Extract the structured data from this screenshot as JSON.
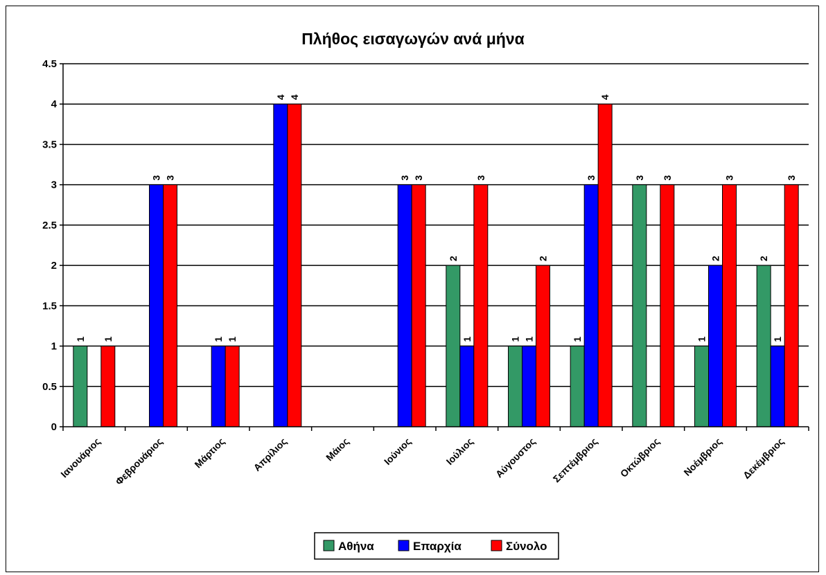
{
  "chart_data": {
    "type": "bar",
    "title": "Πλήθος εισαγωγών ανά μήνα",
    "xlabel": "",
    "ylabel": "",
    "ylim": [
      0,
      4.5
    ],
    "ytick_step": 0.5,
    "grid": true,
    "legend_position": "bottom",
    "categories": [
      "Ιανουάριος",
      "Φεβρουάριος",
      "Μάρτιος",
      "Απρίλιος",
      "Μάιος",
      "Ιούνιος",
      "Ιούλιος",
      "Αύγουστος",
      "Σεπτέμβριος",
      "Οκτώβριος",
      "Νοέμβριος",
      "Δεκέμβριος"
    ],
    "series": [
      {
        "name": "Αθήνα",
        "color": "#339966",
        "values": [
          1,
          0,
          0,
          0,
          0,
          0,
          2,
          1,
          1,
          3,
          1,
          2
        ]
      },
      {
        "name": "Επαρχία",
        "color": "#0000ff",
        "values": [
          0,
          3,
          1,
          4,
          0,
          3,
          1,
          1,
          3,
          0,
          2,
          1
        ]
      },
      {
        "name": "Σύνολο",
        "color": "#ff0000",
        "values": [
          1,
          3,
          1,
          4,
          0,
          3,
          3,
          2,
          4,
          3,
          3,
          3
        ]
      }
    ]
  }
}
